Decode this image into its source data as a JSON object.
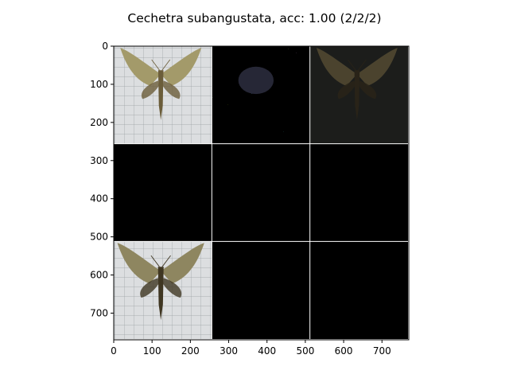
{
  "figure": {
    "title": "Cechetra subangustata, acc: 1.00 (2/2/2)"
  },
  "axes": {
    "xlim": [
      0,
      770
    ],
    "ylim": [
      770,
      0
    ],
    "x_ticks": [
      0,
      100,
      200,
      300,
      400,
      500,
      600,
      700
    ],
    "y_ticks": [
      0,
      100,
      200,
      300,
      400,
      500,
      600,
      700
    ],
    "grid_rows": 3,
    "grid_cols": 3,
    "tile_size": 256,
    "separator_color": "#ffffff"
  },
  "tiles": [
    {
      "row": 0,
      "col": 0,
      "kind": "moth-photo-light",
      "icon": "moth-photo"
    },
    {
      "row": 0,
      "col": 1,
      "kind": "sparse-noise-color",
      "icon": "attribution-noise"
    },
    {
      "row": 0,
      "col": 2,
      "kind": "dark-moth-overlay",
      "icon": "masked-moth"
    },
    {
      "row": 1,
      "col": 0,
      "kind": "black",
      "icon": "empty-tile"
    },
    {
      "row": 1,
      "col": 1,
      "kind": "black",
      "icon": "empty-tile"
    },
    {
      "row": 1,
      "col": 2,
      "kind": "black",
      "icon": "empty-tile"
    },
    {
      "row": 2,
      "col": 0,
      "kind": "moth-photo-dark",
      "icon": "moth-photo"
    },
    {
      "row": 2,
      "col": 1,
      "kind": "black",
      "icon": "empty-tile"
    },
    {
      "row": 2,
      "col": 2,
      "kind": "black",
      "icon": "empty-tile"
    }
  ]
}
